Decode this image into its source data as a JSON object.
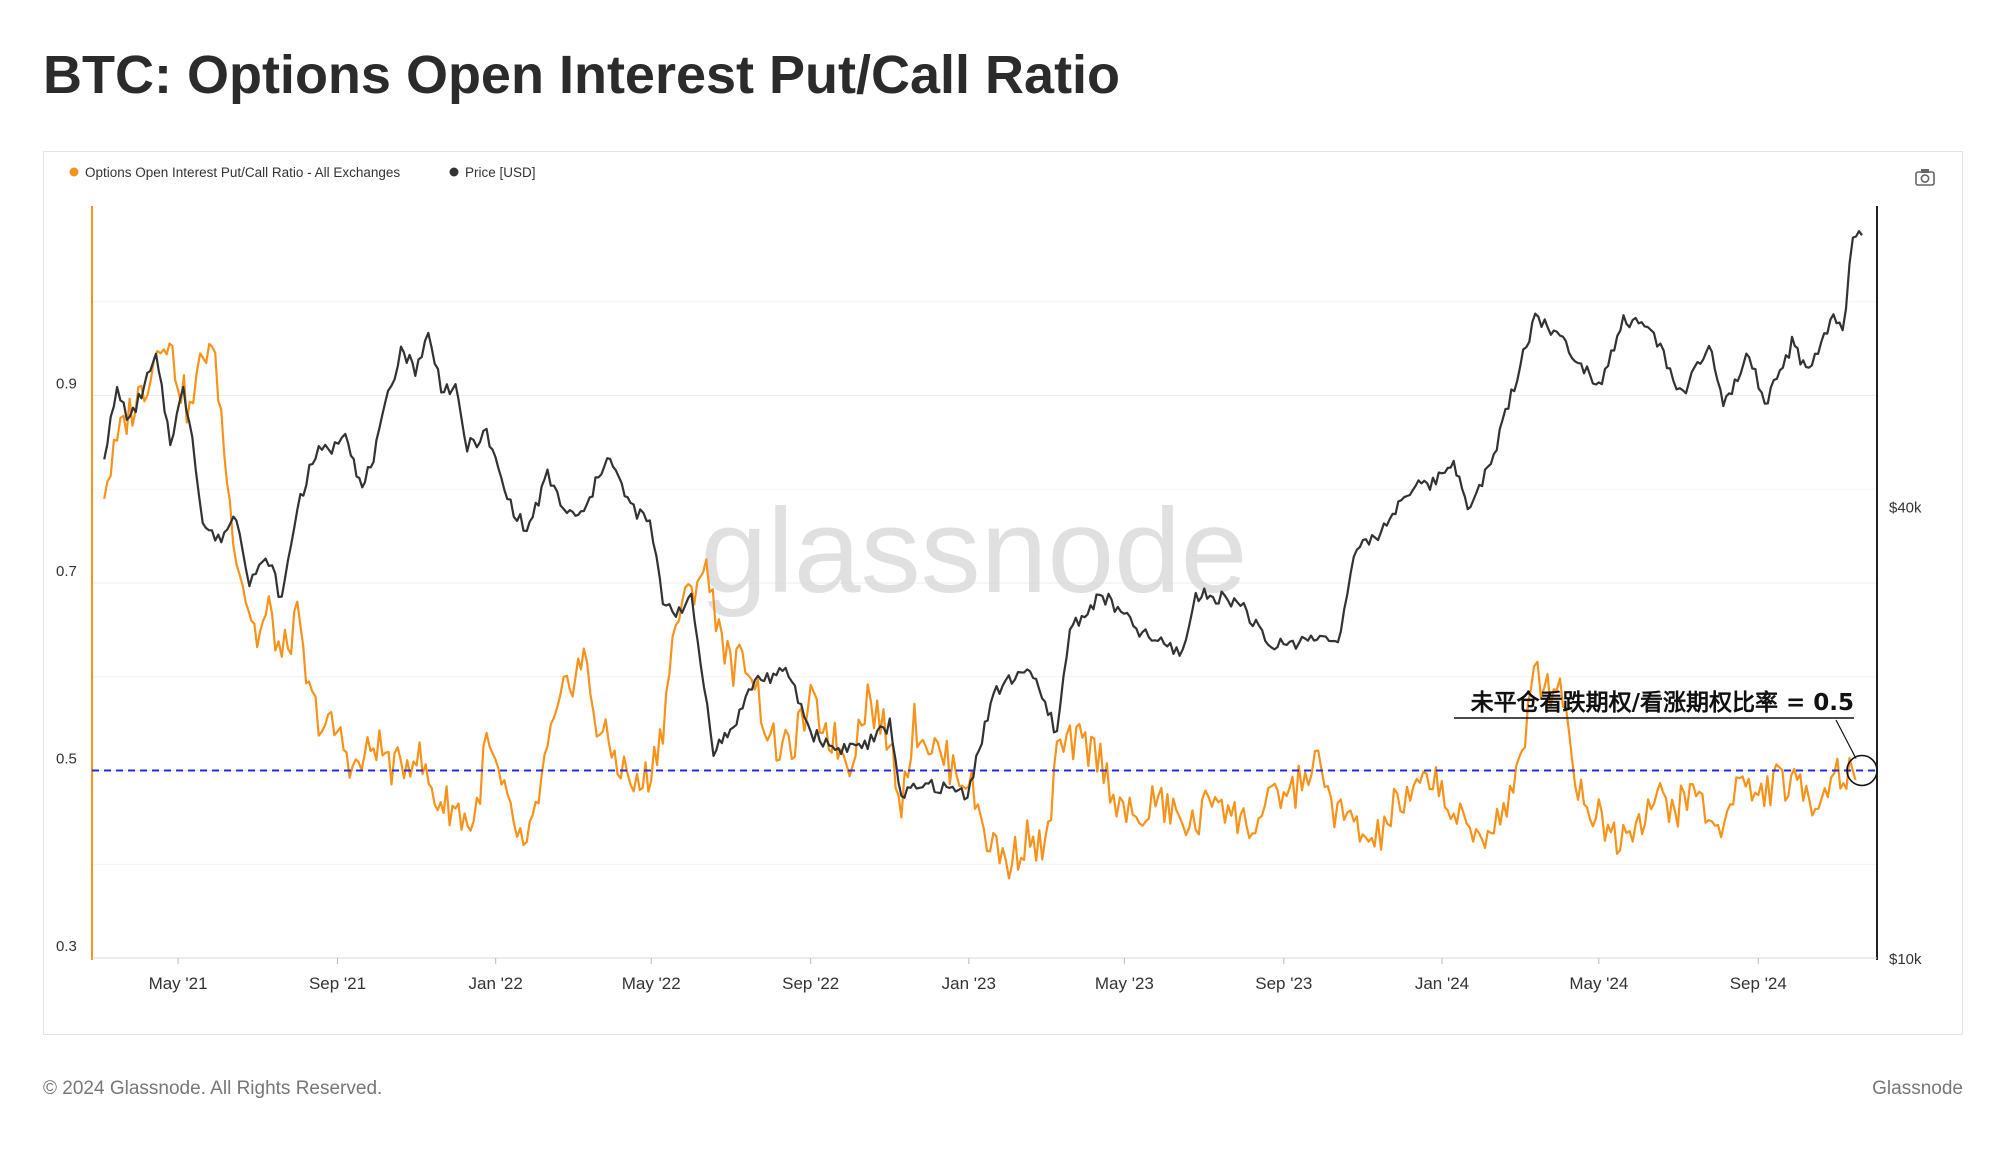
{
  "title": "BTC: Options Open Interest Put/Call Ratio",
  "footer": {
    "copyright": "© 2024 Glassnode. All Rights Reserved.",
    "brand": "Glassnode"
  },
  "watermark": "glassnode",
  "toolbar": {
    "camera_icon": "camera-icon"
  },
  "chart_data": {
    "type": "line",
    "x_ticks": [
      "May '21",
      "Sep '21",
      "Jan '22",
      "May '22",
      "Sep '22",
      "Jan '23",
      "May '23",
      "Sep '23",
      "Jan '24",
      "May '24",
      "Sep '24"
    ],
    "x_range": [
      "2021-03-01",
      "2024-11-20"
    ],
    "y_left": {
      "ticks": [
        "0.3",
        "0.5",
        "0.7",
        "0.9"
      ],
      "range": [
        0.3,
        1.1
      ]
    },
    "y_right": {
      "ticks": [
        "$10k",
        "$40k"
      ],
      "scale": "log",
      "range": [
        10000,
        100000
      ]
    },
    "grid": true,
    "legend_position": "top-left",
    "series": [
      {
        "name": "Options Open Interest Put/Call Ratio - All Exchanges",
        "axis": "left",
        "color": "#f7931a",
        "points": [
          [
            "2021-03-05",
            0.8
          ],
          [
            "2021-03-20",
            0.87
          ],
          [
            "2021-04-05",
            0.91
          ],
          [
            "2021-04-20",
            0.97
          ],
          [
            "2021-05-01",
            0.92
          ],
          [
            "2021-05-10",
            0.88
          ],
          [
            "2021-05-18",
            0.93
          ],
          [
            "2021-05-25",
            0.96
          ],
          [
            "2021-06-01",
            0.91
          ],
          [
            "2021-06-10",
            0.78
          ],
          [
            "2021-06-20",
            0.7
          ],
          [
            "2021-07-01",
            0.64
          ],
          [
            "2021-07-10",
            0.67
          ],
          [
            "2021-07-20",
            0.62
          ],
          [
            "2021-08-01",
            0.66
          ],
          [
            "2021-08-10",
            0.58
          ],
          [
            "2021-08-20",
            0.55
          ],
          [
            "2021-09-01",
            0.54
          ],
          [
            "2021-09-15",
            0.5
          ],
          [
            "2021-10-01",
            0.53
          ],
          [
            "2021-10-15",
            0.5
          ],
          [
            "2021-11-01",
            0.52
          ],
          [
            "2021-11-15",
            0.47
          ],
          [
            "2021-12-01",
            0.46
          ],
          [
            "2021-12-15",
            0.44
          ],
          [
            "2021-12-25",
            0.53
          ],
          [
            "2022-01-10",
            0.46
          ],
          [
            "2022-01-25",
            0.41
          ],
          [
            "2022-02-10",
            0.52
          ],
          [
            "2022-02-25",
            0.59
          ],
          [
            "2022-03-10",
            0.62
          ],
          [
            "2022-03-20",
            0.55
          ],
          [
            "2022-04-05",
            0.51
          ],
          [
            "2022-04-20",
            0.48
          ],
          [
            "2022-05-01",
            0.5
          ],
          [
            "2022-05-10",
            0.55
          ],
          [
            "2022-05-20",
            0.66
          ],
          [
            "2022-06-01",
            0.69
          ],
          [
            "2022-06-10",
            0.72
          ],
          [
            "2022-06-20",
            0.67
          ],
          [
            "2022-07-01",
            0.61
          ],
          [
            "2022-07-15",
            0.62
          ],
          [
            "2022-08-01",
            0.53
          ],
          [
            "2022-08-15",
            0.52
          ],
          [
            "2022-09-01",
            0.57
          ],
          [
            "2022-09-15",
            0.54
          ],
          [
            "2022-10-01",
            0.51
          ],
          [
            "2022-10-15",
            0.58
          ],
          [
            "2022-11-01",
            0.53
          ],
          [
            "2022-11-10",
            0.47
          ],
          [
            "2022-11-20",
            0.55
          ],
          [
            "2022-12-01",
            0.53
          ],
          [
            "2022-12-15",
            0.51
          ],
          [
            "2023-01-01",
            0.49
          ],
          [
            "2023-01-15",
            0.43
          ],
          [
            "2023-02-01",
            0.4
          ],
          [
            "2023-02-15",
            0.43
          ],
          [
            "2023-03-01",
            0.41
          ],
          [
            "2023-03-10",
            0.52
          ],
          [
            "2023-03-25",
            0.53
          ],
          [
            "2023-04-10",
            0.52
          ],
          [
            "2023-04-25",
            0.47
          ],
          [
            "2023-05-10",
            0.44
          ],
          [
            "2023-05-25",
            0.47
          ],
          [
            "2023-06-10",
            0.45
          ],
          [
            "2023-06-25",
            0.44
          ],
          [
            "2023-07-10",
            0.48
          ],
          [
            "2023-07-25",
            0.45
          ],
          [
            "2023-08-10",
            0.44
          ],
          [
            "2023-08-25",
            0.47
          ],
          [
            "2023-09-10",
            0.48
          ],
          [
            "2023-09-25",
            0.51
          ],
          [
            "2023-10-10",
            0.46
          ],
          [
            "2023-10-25",
            0.44
          ],
          [
            "2023-11-10",
            0.42
          ],
          [
            "2023-11-25",
            0.46
          ],
          [
            "2023-12-10",
            0.47
          ],
          [
            "2023-12-25",
            0.5
          ],
          [
            "2024-01-10",
            0.45
          ],
          [
            "2024-01-25",
            0.43
          ],
          [
            "2024-02-10",
            0.44
          ],
          [
            "2024-02-25",
            0.48
          ],
          [
            "2024-03-05",
            0.52
          ],
          [
            "2024-03-12",
            0.63
          ],
          [
            "2024-03-20",
            0.58
          ],
          [
            "2024-04-01",
            0.6
          ],
          [
            "2024-04-15",
            0.48
          ],
          [
            "2024-05-01",
            0.45
          ],
          [
            "2024-05-15",
            0.43
          ],
          [
            "2024-06-01",
            0.45
          ],
          [
            "2024-06-15",
            0.47
          ],
          [
            "2024-07-01",
            0.46
          ],
          [
            "2024-07-15",
            0.48
          ],
          [
            "2024-08-01",
            0.43
          ],
          [
            "2024-08-15",
            0.49
          ],
          [
            "2024-09-01",
            0.47
          ],
          [
            "2024-09-15",
            0.49
          ],
          [
            "2024-10-01",
            0.48
          ],
          [
            "2024-10-15",
            0.47
          ],
          [
            "2024-11-01",
            0.5
          ],
          [
            "2024-11-15",
            0.49
          ]
        ]
      },
      {
        "name": "Price [USD]",
        "axis": "right",
        "color": "#333333",
        "points": [
          [
            "2021-03-05",
            47000
          ],
          [
            "2021-03-15",
            57000
          ],
          [
            "2021-03-25",
            52000
          ],
          [
            "2021-04-05",
            58000
          ],
          [
            "2021-04-14",
            63000
          ],
          [
            "2021-04-25",
            49000
          ],
          [
            "2021-05-05",
            57000
          ],
          [
            "2021-05-12",
            50000
          ],
          [
            "2021-05-20",
            38000
          ],
          [
            "2021-06-01",
            36000
          ],
          [
            "2021-06-15",
            39000
          ],
          [
            "2021-06-25",
            32000
          ],
          [
            "2021-07-10",
            34000
          ],
          [
            "2021-07-20",
            30000
          ],
          [
            "2021-08-01",
            40000
          ],
          [
            "2021-08-15",
            47000
          ],
          [
            "2021-08-30",
            48000
          ],
          [
            "2021-09-07",
            51000
          ],
          [
            "2021-09-20",
            42000
          ],
          [
            "2021-10-01",
            48000
          ],
          [
            "2021-10-10",
            56000
          ],
          [
            "2021-10-20",
            65000
          ],
          [
            "2021-10-31",
            61000
          ],
          [
            "2021-11-10",
            67500
          ],
          [
            "2021-11-20",
            58000
          ],
          [
            "2021-12-01",
            57000
          ],
          [
            "2021-12-10",
            48000
          ],
          [
            "2021-12-25",
            50000
          ],
          [
            "2022-01-10",
            41000
          ],
          [
            "2022-01-25",
            37000
          ],
          [
            "2022-02-10",
            44000
          ],
          [
            "2022-02-25",
            39000
          ],
          [
            "2022-03-10",
            39000
          ],
          [
            "2022-03-28",
            47000
          ],
          [
            "2022-04-15",
            40000
          ],
          [
            "2022-04-30",
            38000
          ],
          [
            "2022-05-10",
            30000
          ],
          [
            "2022-05-20",
            29000
          ],
          [
            "2022-06-01",
            30000
          ],
          [
            "2022-06-18",
            19000
          ],
          [
            "2022-07-01",
            20000
          ],
          [
            "2022-07-20",
            23500
          ],
          [
            "2022-08-15",
            24000
          ],
          [
            "2022-09-01",
            20000
          ],
          [
            "2022-09-20",
            19000
          ],
          [
            "2022-10-15",
            19300
          ],
          [
            "2022-11-01",
            20500
          ],
          [
            "2022-11-10",
            16500
          ],
          [
            "2022-12-01",
            17000
          ],
          [
            "2022-12-31",
            16600
          ],
          [
            "2023-01-20",
            22500
          ],
          [
            "2023-02-15",
            24500
          ],
          [
            "2023-03-10",
            20000
          ],
          [
            "2023-03-20",
            27500
          ],
          [
            "2023-04-14",
            30500
          ],
          [
            "2023-05-15",
            27000
          ],
          [
            "2023-06-15",
            25500
          ],
          [
            "2023-06-25",
            30500
          ],
          [
            "2023-07-15",
            30300
          ],
          [
            "2023-08-01",
            29500
          ],
          [
            "2023-08-20",
            26000
          ],
          [
            "2023-09-15",
            26500
          ],
          [
            "2023-10-15",
            27000
          ],
          [
            "2023-10-25",
            34500
          ],
          [
            "2023-11-15",
            37000
          ],
          [
            "2023-12-05",
            42000
          ],
          [
            "2023-12-25",
            43000
          ],
          [
            "2024-01-10",
            46000
          ],
          [
            "2024-01-23",
            39500
          ],
          [
            "2024-02-10",
            47000
          ],
          [
            "2024-02-28",
            60000
          ],
          [
            "2024-03-13",
            72000
          ],
          [
            "2024-03-25",
            69000
          ],
          [
            "2024-04-15",
            63000
          ],
          [
            "2024-05-01",
            58000
          ],
          [
            "2024-05-20",
            71000
          ],
          [
            "2024-06-10",
            69000
          ],
          [
            "2024-06-25",
            61000
          ],
          [
            "2024-07-05",
            56000
          ],
          [
            "2024-07-25",
            66000
          ],
          [
            "2024-08-05",
            54000
          ],
          [
            "2024-08-25",
            64000
          ],
          [
            "2024-09-06",
            54000
          ],
          [
            "2024-09-27",
            66000
          ],
          [
            "2024-10-10",
            60000
          ],
          [
            "2024-10-29",
            72000
          ],
          [
            "2024-11-05",
            68000
          ],
          [
            "2024-11-13",
            91000
          ],
          [
            "2024-11-20",
            92000
          ]
        ]
      }
    ],
    "reference_line": {
      "axis": "left",
      "value": 0.5,
      "style": "dashed",
      "color": "#1f2fdc"
    },
    "annotation": {
      "text": "未平仓看跌期权/看涨期权比率 = 0.5"
    }
  }
}
